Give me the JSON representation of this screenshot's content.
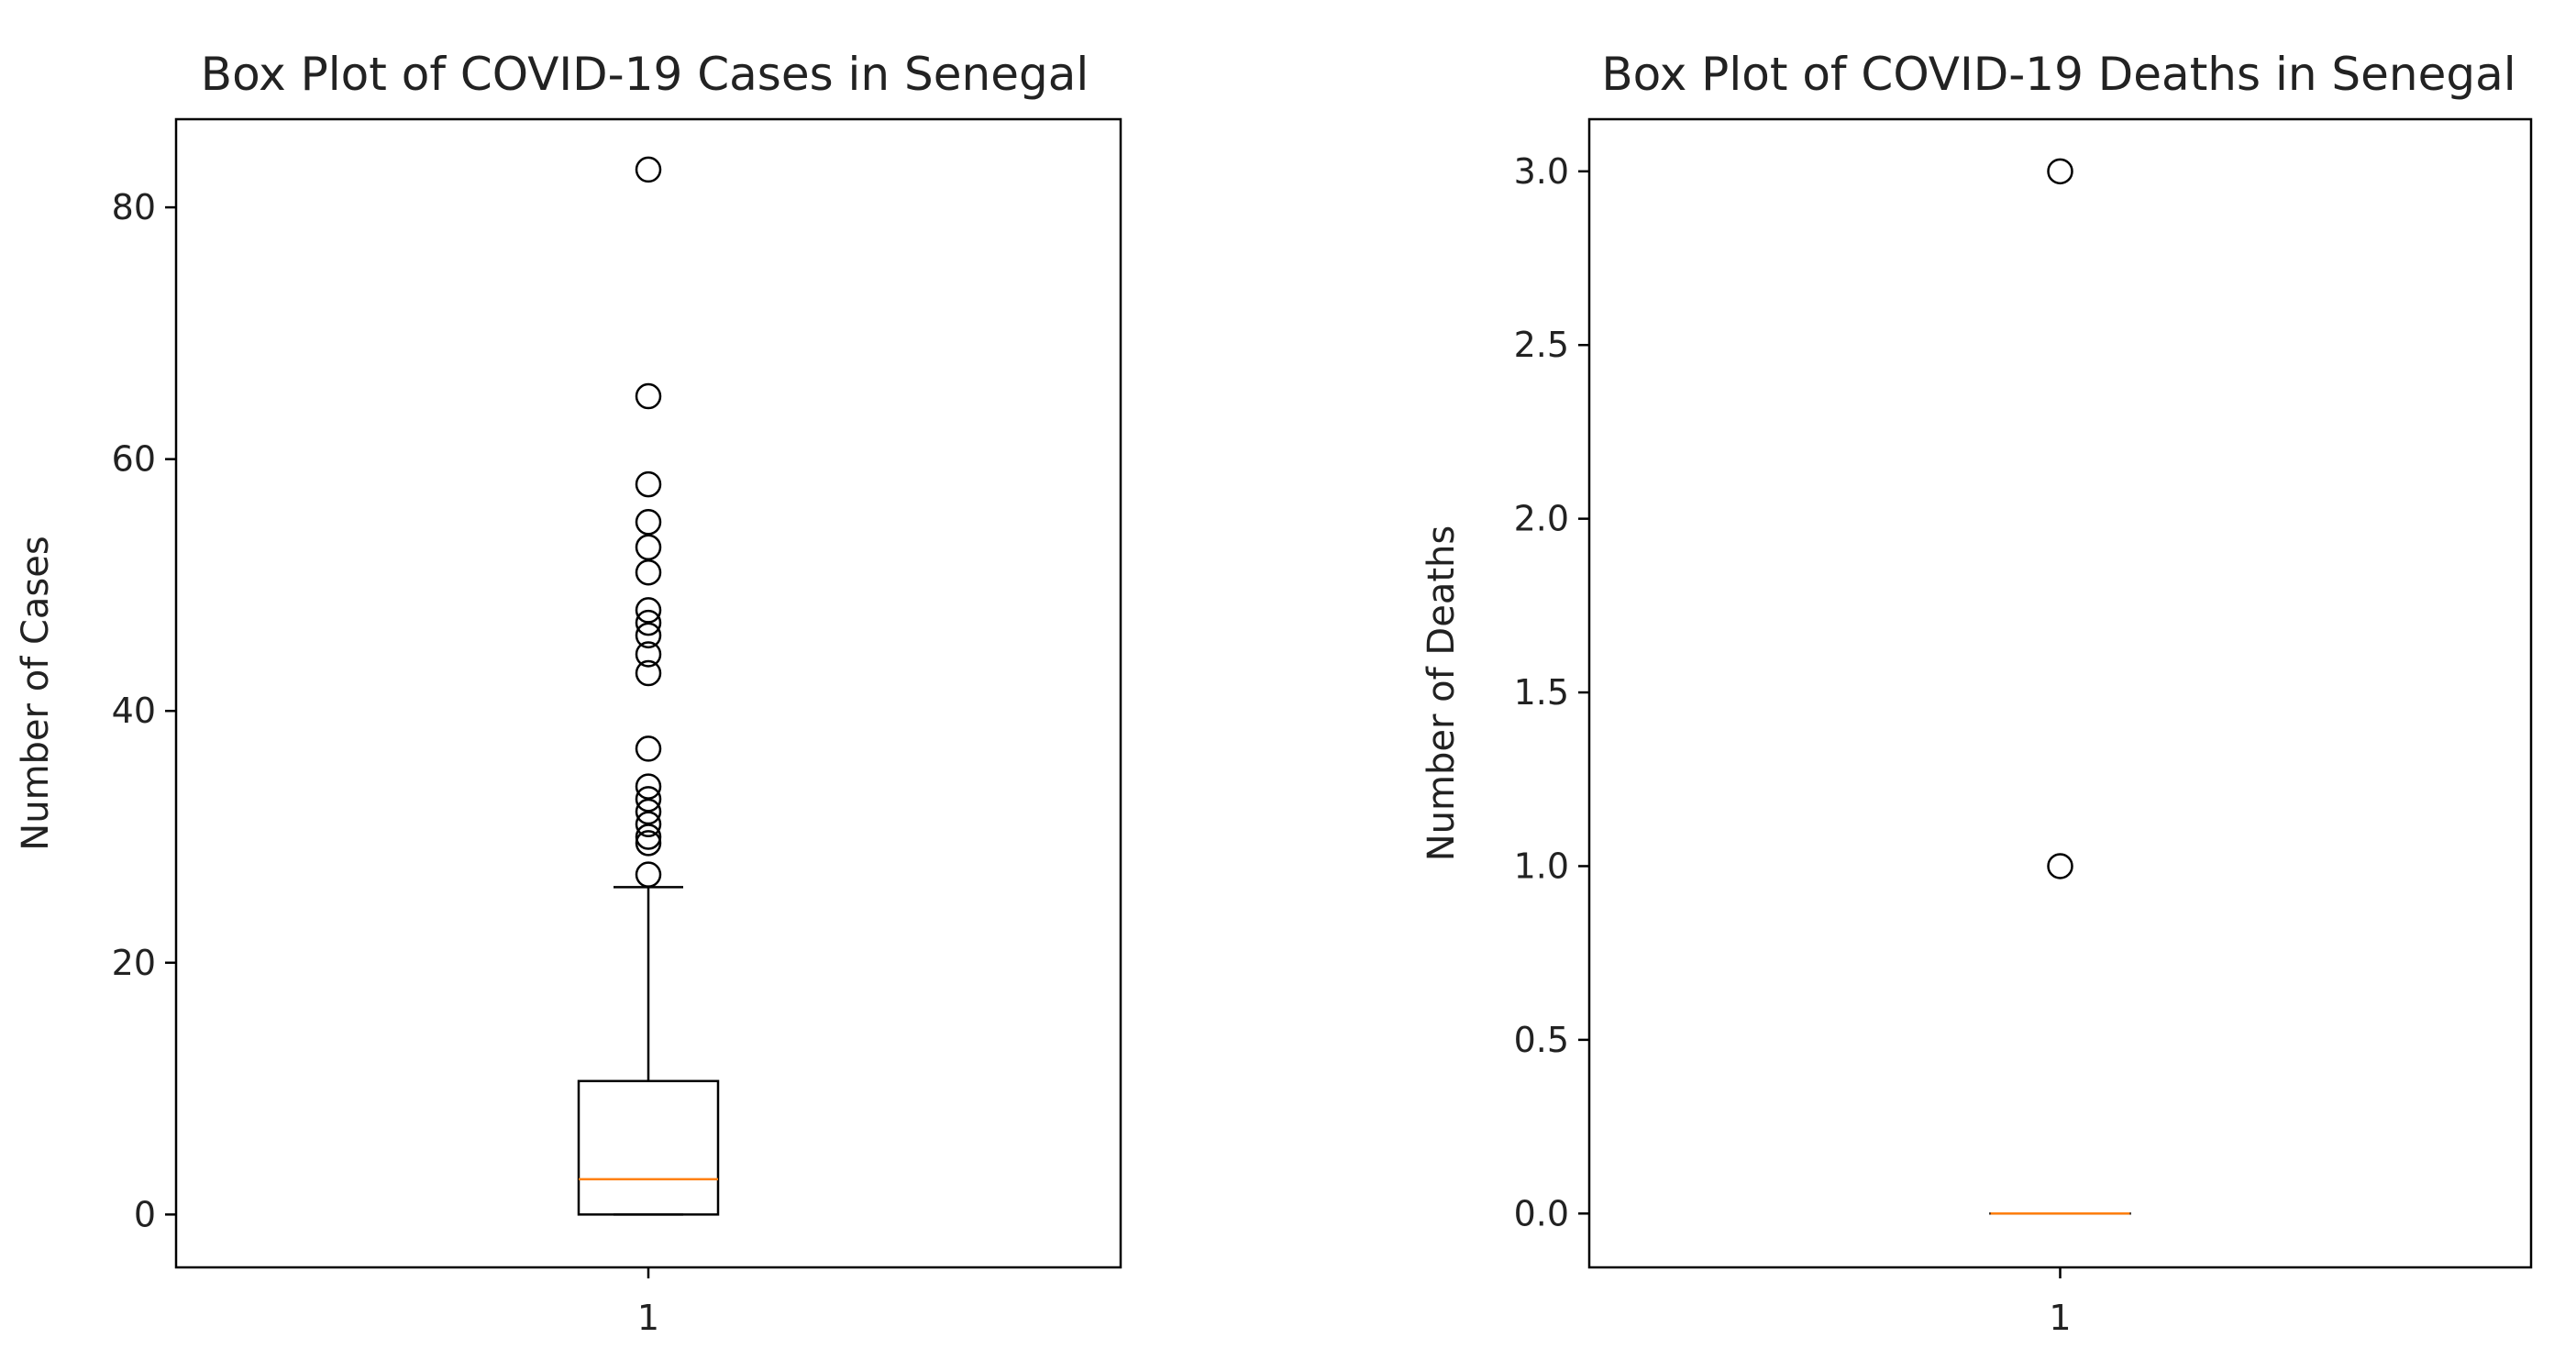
{
  "chart_data": [
    {
      "type": "box",
      "title": "Box Plot of COVID-19 Cases in Senegal",
      "xlabel": "",
      "ylabel": "Number of Cases",
      "categories": [
        "1"
      ],
      "ylim": [
        -4.2,
        87
      ],
      "yticks": [
        0,
        20,
        40,
        60,
        80
      ],
      "ytick_labels": [
        "0",
        "20",
        "40",
        "60",
        "80"
      ],
      "box": {
        "whisker_low": 0,
        "q1": 0,
        "median": 2.8,
        "q3": 10.6,
        "whisker_high": 26
      },
      "outliers": [
        27,
        29.5,
        30,
        31,
        32,
        33,
        34,
        37,
        43,
        44.5,
        46,
        47,
        48,
        51,
        53,
        55,
        58,
        65,
        83
      ],
      "grid": false,
      "colors": {
        "box": "#000000",
        "median": "#ff7f0e",
        "outlier": "#000000"
      }
    },
    {
      "type": "box",
      "title": "Box Plot of COVID-19 Deaths in Senegal",
      "xlabel": "",
      "ylabel": "Number of Deaths",
      "categories": [
        "1"
      ],
      "ylim": [
        -0.155,
        3.15
      ],
      "yticks": [
        0,
        0.5,
        1,
        1.5,
        2,
        2.5,
        3
      ],
      "ytick_labels": [
        "0.0",
        "0.5",
        "1.0",
        "1.5",
        "2.0",
        "2.5",
        "3.0"
      ],
      "box": {
        "whisker_low": 0,
        "q1": 0,
        "median": 0,
        "q3": 0,
        "whisker_high": 0
      },
      "outliers": [
        1,
        3
      ],
      "grid": false,
      "colors": {
        "box": "#000000",
        "median": "#ff7f0e",
        "outlier": "#000000"
      }
    }
  ]
}
